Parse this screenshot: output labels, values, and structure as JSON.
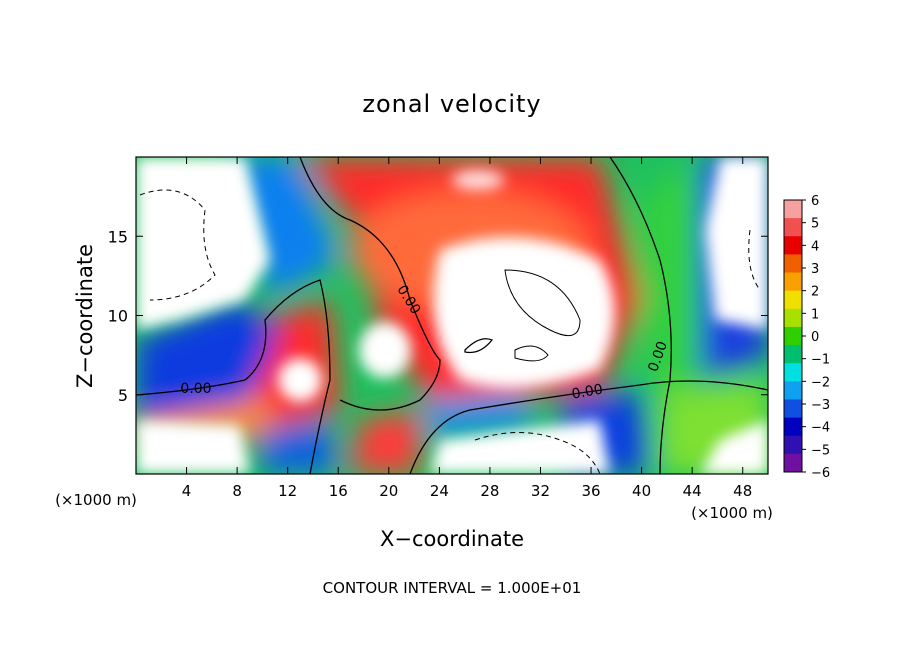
{
  "chart_data": {
    "type": "heatmap",
    "title": "zonal velocity",
    "xlabel": "X−coordinate",
    "ylabel": "Z−coordinate",
    "x_unit_left": "(×1000 m)",
    "x_unit_right": "(×1000 m)",
    "xlim": [
      0,
      50
    ],
    "ylim": [
      0,
      20
    ],
    "x_ticks": [
      4,
      8,
      12,
      16,
      20,
      24,
      28,
      32,
      36,
      40,
      44,
      48
    ],
    "y_ticks": [
      5,
      10,
      15
    ],
    "colorbar": {
      "ticks": [
        6,
        5,
        4,
        3,
        2,
        1,
        0,
        -1,
        -2,
        -3,
        -4,
        -5,
        -6
      ],
      "labels": [
        "6",
        "5",
        "4",
        "3",
        "2",
        "1",
        "0",
        "−1",
        "−2",
        "−3",
        "−4",
        "−5",
        "−6"
      ],
      "colors": [
        "#f7a0a0",
        "#f05050",
        "#e80000",
        "#f06000",
        "#f8a000",
        "#f0e000",
        "#a8e000",
        "#30d000",
        "#00c070",
        "#00e0e0",
        "#10a0f0",
        "#1050e0",
        "#0000c0",
        "#3010b0",
        "#7010a0"
      ]
    },
    "contour_labels": [
      "0.00",
      "0.00",
      "0.00",
      "0.00"
    ],
    "footer": "CONTOUR INTERVAL = 1.000E+01"
  }
}
